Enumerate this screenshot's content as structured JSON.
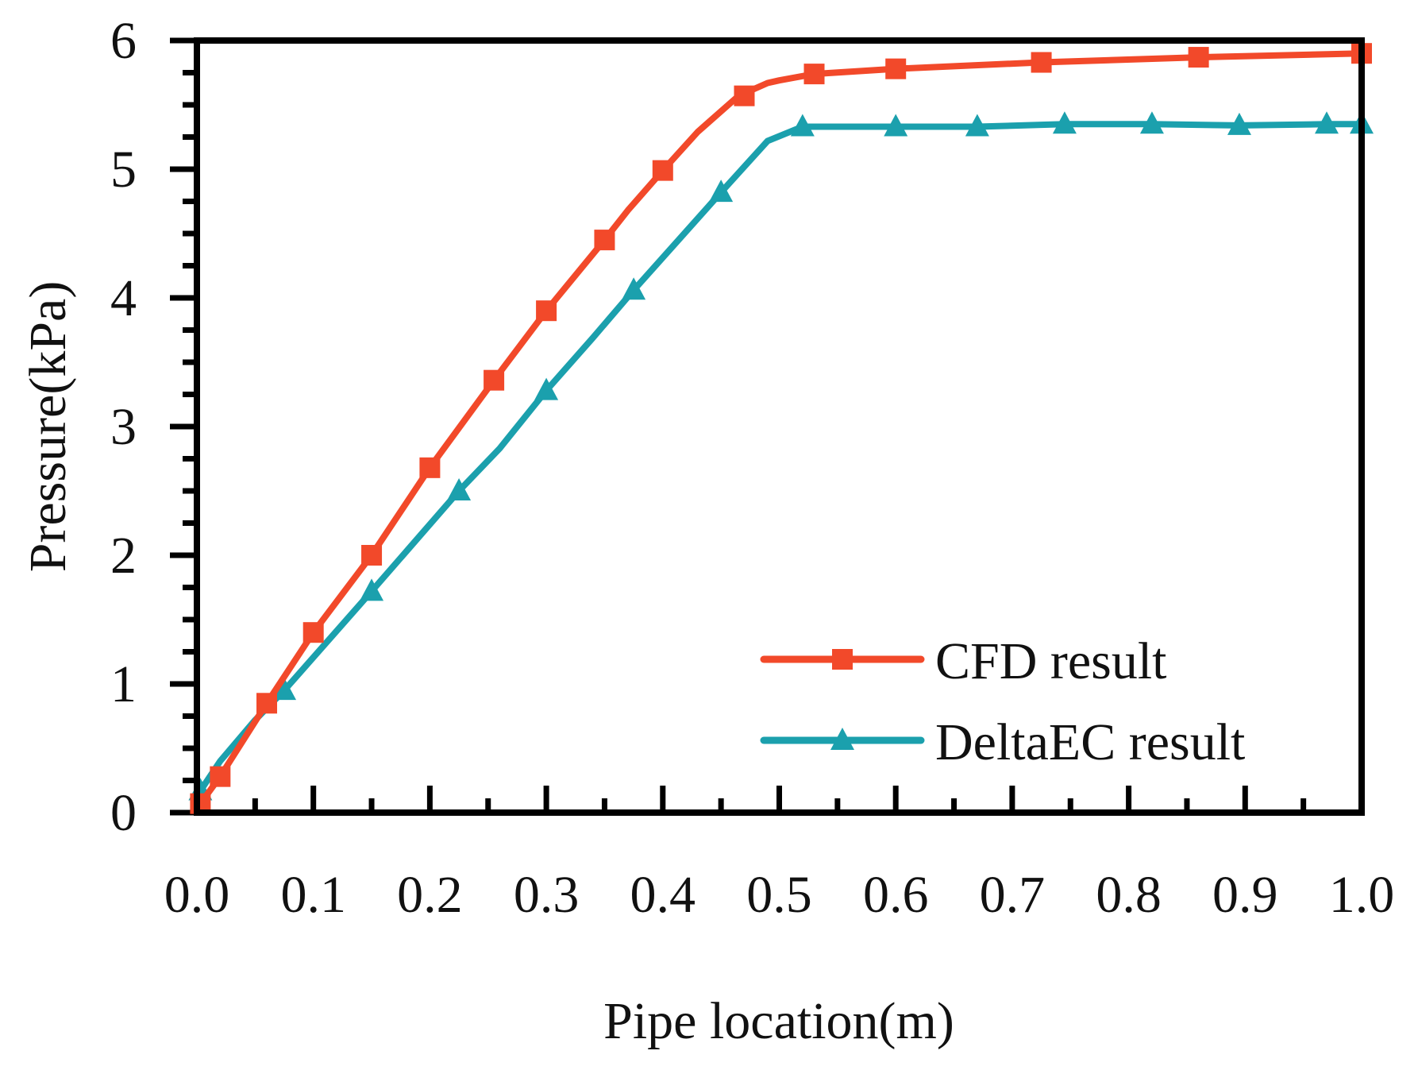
{
  "chart_data": {
    "type": "line",
    "title": "",
    "xlabel": "Pipe location(m)",
    "ylabel": "Pressure(kPa)",
    "xlim": [
      0.0,
      1.0
    ],
    "ylim": [
      0,
      6
    ],
    "x_ticks": [
      "0.0",
      "0.1",
      "0.2",
      "0.3",
      "0.4",
      "0.5",
      "0.6",
      "0.7",
      "0.8",
      "0.9",
      "1.0"
    ],
    "y_ticks": [
      "0",
      "1",
      "2",
      "3",
      "4",
      "5",
      "6"
    ],
    "grid": false,
    "legend_position": "bottom-right",
    "series": [
      {
        "name": "CFD result",
        "color": "#f2492a",
        "marker": "square",
        "line_x": [
          0.003,
          0.02,
          0.06,
          0.1,
          0.15,
          0.2,
          0.255,
          0.3,
          0.35,
          0.37,
          0.4,
          0.43,
          0.465,
          0.49,
          0.5,
          0.53,
          0.6,
          0.725,
          0.86,
          1.0
        ],
        "line_y": [
          0.07,
          0.28,
          0.85,
          1.4,
          2.0,
          2.68,
          3.36,
          3.9,
          4.45,
          4.68,
          4.99,
          5.29,
          5.57,
          5.67,
          5.69,
          5.74,
          5.78,
          5.83,
          5.87,
          5.9
        ],
        "marker_x": [
          0.003,
          0.02,
          0.06,
          0.1,
          0.15,
          0.2,
          0.255,
          0.3,
          0.35,
          0.4,
          0.47,
          0.53,
          0.6,
          0.725,
          0.86,
          1.0
        ],
        "marker_y": [
          0.07,
          0.28,
          0.85,
          1.4,
          2.0,
          2.68,
          3.36,
          3.9,
          4.45,
          4.99,
          5.57,
          5.74,
          5.78,
          5.83,
          5.87,
          5.9
        ]
      },
      {
        "name": "DeltaEC result",
        "color": "#1ba0ad",
        "marker": "triangle",
        "line_x": [
          0.003,
          0.02,
          0.05,
          0.075,
          0.15,
          0.225,
          0.26,
          0.3,
          0.34,
          0.375,
          0.45,
          0.49,
          0.52,
          0.6,
          0.67,
          0.745,
          0.82,
          0.895,
          0.97,
          1.0
        ],
        "line_y": [
          0.17,
          0.4,
          0.72,
          0.95,
          1.72,
          2.5,
          2.83,
          3.28,
          3.69,
          4.06,
          4.82,
          5.22,
          5.33,
          5.33,
          5.33,
          5.35,
          5.35,
          5.34,
          5.35,
          5.35
        ],
        "marker_x": [
          0.003,
          0.075,
          0.15,
          0.225,
          0.3,
          0.375,
          0.45,
          0.52,
          0.6,
          0.67,
          0.745,
          0.82,
          0.895,
          0.97,
          1.0
        ],
        "marker_y": [
          0.17,
          0.95,
          1.72,
          2.5,
          3.28,
          4.06,
          4.82,
          5.33,
          5.33,
          5.33,
          5.35,
          5.35,
          5.34,
          5.35,
          5.35
        ]
      }
    ]
  }
}
